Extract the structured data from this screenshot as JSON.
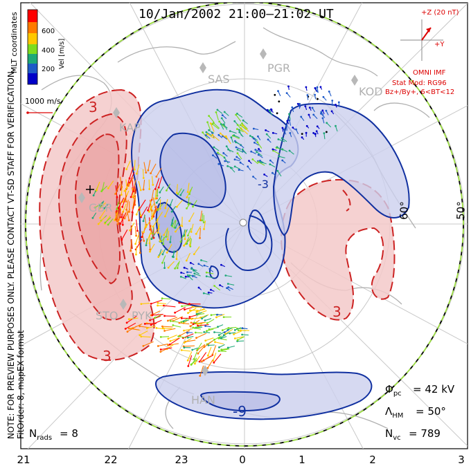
{
  "title": "10/Jan/2002 21:00–21:02 UT",
  "side_note": "NOTE: FOR PREVIEW PURPOSES ONLY. PLEASE CONTACT VT-SD STAFF FOR VERIFICATION.",
  "fit_note": "FitOrder: 8, mapEX format",
  "colorbar": {
    "title": "Vel [m/s]",
    "ticks": [
      "600",
      "400",
      "200"
    ],
    "colors": [
      "#ff0000",
      "#ff7a00",
      "#ffc800",
      "#7ddc1e",
      "#1ea878",
      "#1e5ac8",
      "#0000c8"
    ]
  },
  "coords_label": "MLT coordinates",
  "scale_label": "1000 m/s",
  "imf": {
    "z_label": "+Z (20 nT)",
    "y_label": "+Y",
    "source": "OMNI IMF",
    "stat_mod": "Stat Mod: RG96",
    "condition": "Bz+/By+, 6<BT<12"
  },
  "radars": [
    "PGR",
    "SAS",
    "KOD",
    "KAP",
    "GBR",
    "STO",
    "PYK",
    "HAN"
  ],
  "latitude_labels": [
    "60°",
    "50°"
  ],
  "contour_labels": {
    "pos_top": "3",
    "pos_right": "3",
    "pos_bottom": "3",
    "neg_bottom": "-9",
    "neg_small": "-3"
  },
  "stats": {
    "phi_pc": "42 kV",
    "lambda_hm": "50°",
    "n_vc": "789",
    "n_rads": "8"
  },
  "mlt_labels": [
    "21",
    "22",
    "23",
    "0",
    "1",
    "2",
    "3"
  ],
  "colors": {
    "positive": "#cc2222",
    "negative": "#1030a0",
    "positive_fill": "#f3c9c9",
    "negative_fill": "#ccd0ee",
    "boundary": "#9adb40",
    "annotation": "#dd0000"
  }
}
